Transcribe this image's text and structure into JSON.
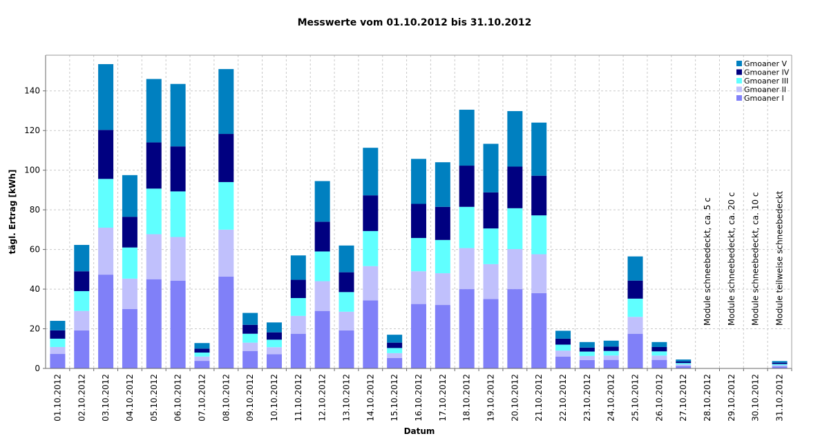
{
  "chart_data": {
    "type": "stacked_bar",
    "title": "Messwerte vom 01.10.2012 bis 31.10.2012",
    "x_label": "Datum",
    "y_label": "tägl. Ertrag [kWh]",
    "categories": [
      "01.10.2012",
      "02.10.2012",
      "03.10.2012",
      "04.10.2012",
      "05.10.2012",
      "06.10.2012",
      "07.10.2012",
      "08.10.2012",
      "09.10.2012",
      "10.10.2012",
      "11.10.2012",
      "12.10.2012",
      "13.10.2012",
      "14.10.2012",
      "15.10.2012",
      "16.10.2012",
      "17.10.2012",
      "18.10.2012",
      "19.10.2012",
      "20.10.2012",
      "21.10.2012",
      "22.10.2012",
      "23.10.2012",
      "24.10.2012",
      "25.10.2012",
      "26.10.2012",
      "27.10.2012",
      "28.10.2012",
      "29.10.2012",
      "30.10.2012",
      "31.10.2012"
    ],
    "series": [
      {
        "name": "Gmoaner I",
        "color": "#8080f8",
        "values": [
          7.3,
          19.2,
          47.3,
          30,
          45,
          44.2,
          3.8,
          46.3,
          8.8,
          7.2,
          17.5,
          29,
          19.2,
          34.3,
          5.3,
          32.5,
          32,
          40,
          35,
          40,
          38,
          6,
          4.2,
          4.3,
          17.5,
          4.3,
          1.2,
          0,
          0,
          0,
          1
        ]
      },
      {
        "name": "Gmoaner II",
        "color": "#c0c0fc",
        "values": [
          3.5,
          9.8,
          23.7,
          15.3,
          22.7,
          22.1,
          2.2,
          23.7,
          4.2,
          3.5,
          9,
          15,
          9.4,
          17.3,
          2.4,
          16.5,
          16,
          20.7,
          17.6,
          20.2,
          19.6,
          3,
          2.1,
          2.2,
          8.5,
          2.2,
          0.8,
          0,
          0,
          0,
          0.6
        ]
      },
      {
        "name": "Gmoaner III",
        "color": "#60ffff",
        "values": [
          4.2,
          10,
          24.6,
          15.7,
          23,
          23,
          2,
          24,
          4.5,
          3.8,
          9,
          15,
          9.9,
          17.7,
          2.6,
          16.8,
          16.8,
          20.8,
          18,
          20.6,
          19.6,
          3,
          2.2,
          2.3,
          9.2,
          2.1,
          0.7,
          0,
          0,
          0,
          0.6
        ]
      },
      {
        "name": "Gmoaner IV",
        "color": "#000080",
        "values": [
          4.2,
          10,
          24.7,
          15.5,
          23.3,
          22.7,
          2,
          24.3,
          4.5,
          3.7,
          9.2,
          15,
          10,
          18,
          2.7,
          17.2,
          16.7,
          20.8,
          18.2,
          21,
          20,
          3,
          2,
          2.2,
          9.1,
          2.2,
          0.8,
          0,
          0,
          0,
          0.7
        ]
      },
      {
        "name": "Gmoaner V",
        "color": "#0080c0",
        "values": [
          4.8,
          13.3,
          33.2,
          21,
          32,
          31.5,
          2.8,
          32.7,
          6,
          5,
          12.3,
          20.5,
          13.5,
          24,
          4,
          22.7,
          22.5,
          28.2,
          24.5,
          28,
          26.8,
          4,
          2.8,
          3,
          12.2,
          2.5,
          1,
          0,
          0,
          0,
          0.8
        ]
      }
    ],
    "category_notes": [
      null,
      null,
      null,
      null,
      null,
      null,
      null,
      null,
      null,
      null,
      null,
      null,
      null,
      null,
      null,
      null,
      null,
      null,
      null,
      null,
      null,
      null,
      null,
      null,
      null,
      null,
      null,
      "Module schneebedeckt, ca. 5 c",
      "Module schneebedeckt, ca. 20 c",
      "Module schneebedeckt, ca. 10 c",
      "Module teilweise schneebedeckt"
    ],
    "ylim": [
      0,
      158
    ],
    "yticks": [
      0,
      20,
      40,
      60,
      80,
      100,
      120,
      140
    ],
    "grid": true,
    "legend": "top-right"
  }
}
